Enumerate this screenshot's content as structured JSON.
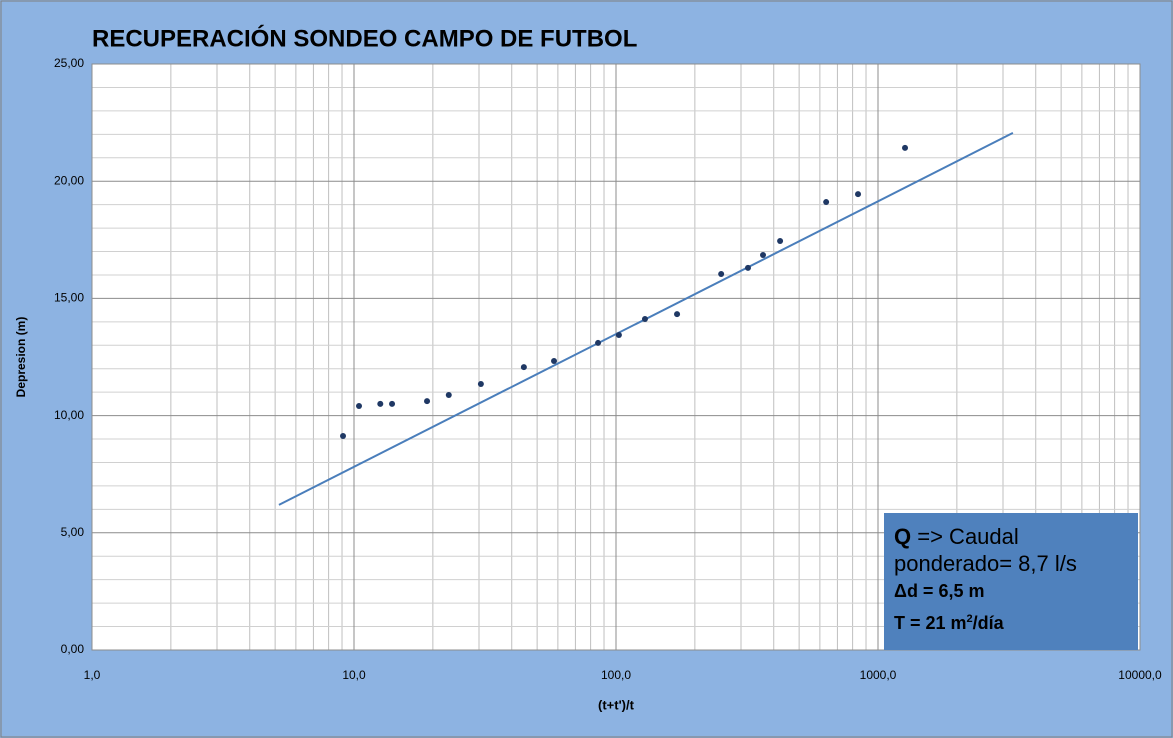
{
  "chart_data": {
    "type": "scatter",
    "title": "RECUPERACIÓN SONDEO CAMPO DE FUTBOL",
    "xlabel": "(t+t')/t",
    "ylabel": "Depresion (m)",
    "xscale": "log",
    "grid": true,
    "xlim": [
      1,
      10000
    ],
    "ylim": [
      0,
      25
    ],
    "xticks": [
      {
        "value": 1,
        "label": "1,0"
      },
      {
        "value": 10,
        "label": "10,0"
      },
      {
        "value": 100,
        "label": "100,0"
      },
      {
        "value": 1000,
        "label": "1000,0"
      },
      {
        "value": 10000,
        "label": "10000,0"
      }
    ],
    "xminorticks": [
      2,
      3,
      4,
      5,
      6,
      7,
      8,
      9,
      20,
      30,
      40,
      50,
      60,
      70,
      80,
      90,
      200,
      300,
      400,
      500,
      600,
      700,
      800,
      900,
      2000,
      3000,
      4000,
      5000,
      6000,
      7000,
      8000,
      9000
    ],
    "yticks": [
      {
        "value": 0,
        "label": "0,00"
      },
      {
        "value": 5,
        "label": "5,00"
      },
      {
        "value": 10,
        "label": "10,00"
      },
      {
        "value": 15,
        "label": "15,00"
      },
      {
        "value": 20,
        "label": "20,00"
      },
      {
        "value": 25,
        "label": "25,00"
      }
    ],
    "yminorticks": [
      1,
      2,
      3,
      4,
      6,
      7,
      8,
      9,
      11,
      12,
      13,
      14,
      16,
      17,
      18,
      19,
      21,
      22,
      23,
      24
    ],
    "series": [
      {
        "color": "#1f3864",
        "x": [
          9.08,
          10.45,
          12.6,
          13.97,
          19.0,
          23.0,
          30.5,
          44.5,
          58,
          85.4,
          102.6,
          129,
          171,
          252,
          319,
          364,
          423,
          634,
          839,
          1268
        ],
        "values": [
          9.13,
          10.41,
          10.5,
          10.5,
          10.62,
          10.88,
          11.35,
          12.07,
          12.33,
          13.1,
          13.44,
          14.12,
          14.33,
          16.04,
          16.3,
          16.85,
          17.45,
          19.11,
          19.45,
          21.42
        ]
      }
    ],
    "trendline": {
      "color": "#4a7ebb",
      "x": [
        5.17,
        3273
      ],
      "values": [
        6.19,
        22.06
      ]
    },
    "annotation": {
      "q_label": "Q",
      "q_text": "=> Caudal ponderado= 8,7 l/s",
      "delta": "Δd = 6,5 m",
      "t_label": "T =  21 m",
      "t_sup": "2",
      "t_unit": "/día"
    }
  }
}
